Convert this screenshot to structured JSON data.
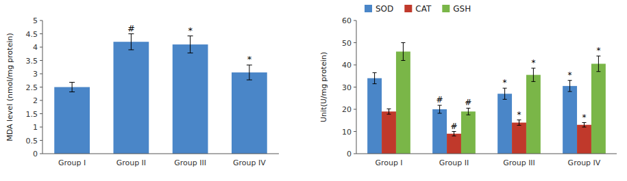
{
  "chart_data": [
    {
      "type": "bar",
      "categories": [
        "Group I",
        "Group II",
        "Group III",
        "Group IV"
      ],
      "values": [
        2.5,
        4.2,
        4.1,
        3.05
      ],
      "errors": [
        0.18,
        0.3,
        0.32,
        0.28
      ],
      "color": "#4a86c8",
      "ylabel": "MDA level (nmol/mg protein)",
      "ylim": [
        0,
        5
      ],
      "yticks": [
        0,
        0.5,
        1,
        1.5,
        2,
        2.5,
        3,
        3.5,
        4,
        4.5,
        5
      ],
      "annotations": [
        null,
        "#",
        "*",
        "*"
      ],
      "grid": false
    },
    {
      "type": "bar",
      "categories": [
        "Group I",
        "Group II",
        "Group III",
        "Group IV"
      ],
      "series": [
        {
          "name": "SOD",
          "color": "#4a86c8",
          "values": [
            34.0,
            20.0,
            27.0,
            30.5
          ],
          "errors": [
            2.5,
            1.8,
            2.5,
            2.5
          ],
          "annotations": [
            null,
            "#",
            "*",
            "*"
          ]
        },
        {
          "name": "CAT",
          "color": "#c0392b",
          "values": [
            19.0,
            9.0,
            14.0,
            13.0
          ],
          "errors": [
            1.2,
            1.0,
            1.2,
            1.0
          ],
          "annotations": [
            null,
            "#",
            "*",
            "*"
          ]
        },
        {
          "name": "GSH",
          "color": "#7ab648",
          "values": [
            46.0,
            19.0,
            35.5,
            40.5
          ],
          "errors": [
            4.0,
            1.5,
            3.0,
            3.5
          ],
          "annotations": [
            null,
            "#",
            "*",
            "*"
          ]
        }
      ],
      "ylabel": "Unit(U/mg protein)",
      "ylim": [
        0,
        60
      ],
      "yticks": [
        0,
        10,
        20,
        30,
        40,
        50,
        60
      ],
      "legend": "top",
      "grid": false
    }
  ]
}
